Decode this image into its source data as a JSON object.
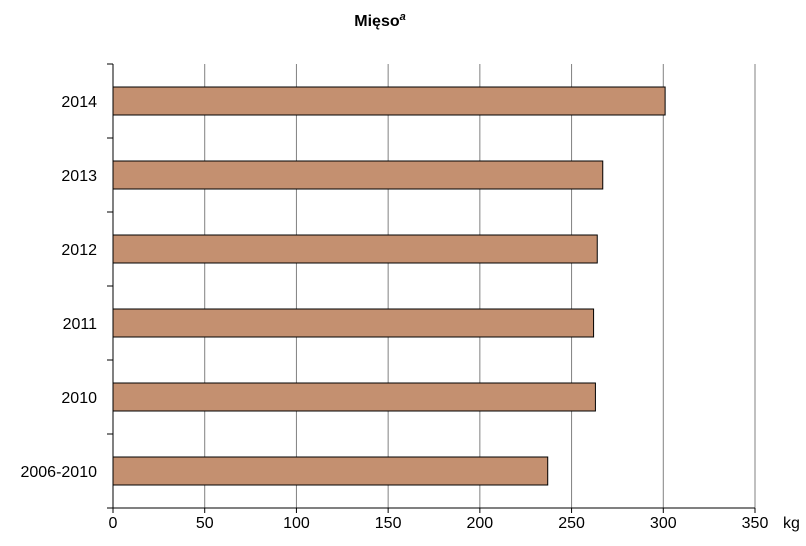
{
  "chart_data": {
    "type": "bar",
    "orientation": "horizontal",
    "title": "Mięso",
    "title_superscript": "a",
    "categories": [
      "2006-2010",
      "2010",
      "2011",
      "2012",
      "2013",
      "2014"
    ],
    "values": [
      237,
      263,
      262,
      264,
      267,
      301
    ],
    "xlim": [
      0,
      350
    ],
    "xticks": [
      "0",
      "50",
      "100",
      "150",
      "200",
      "250",
      "300",
      "350"
    ],
    "x_unit": "kg",
    "grid": "vertical",
    "legend": "none",
    "bar_color": "#c49070"
  }
}
